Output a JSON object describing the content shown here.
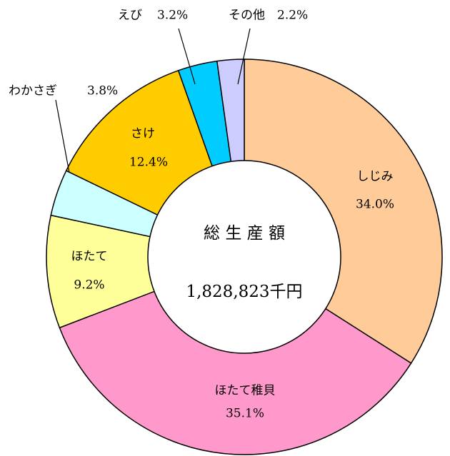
{
  "chart_data": {
    "type": "pie",
    "categories": [
      "しじみ",
      "ほたて稚貝",
      "ほたて",
      "わかさぎ",
      "さけ",
      "えび",
      "その他"
    ],
    "values": [
      34.0,
      35.1,
      9.2,
      3.8,
      12.4,
      3.2,
      2.2
    ],
    "value_labels": [
      "34.0%",
      "35.1%",
      "9.2%",
      "3.8%",
      "12.4%",
      "3.2%",
      "2.2%"
    ],
    "colors": [
      "#FFCC99",
      "#FF99CC",
      "#FFFF99",
      "#CCFFFF",
      "#FFCC00",
      "#00CCFF",
      "#CCCCFF"
    ],
    "center_title": "総 生 産 額",
    "center_value": "1,828,823千円"
  }
}
